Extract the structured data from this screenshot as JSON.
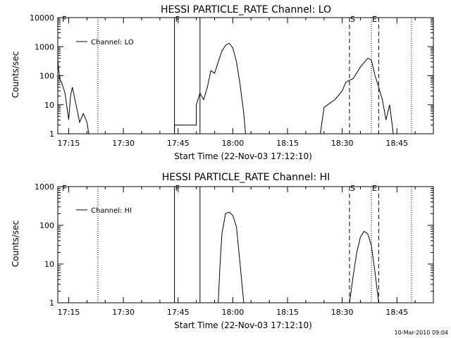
{
  "stamp": "10-Mar-2010 09:04",
  "colors": {
    "background": "#ffffff",
    "foreground": "#000000"
  },
  "chart_data": [
    {
      "type": "line",
      "title": "HESSI PARTICLE_RATE Channel: LO",
      "xlabel": "Start Time (22-Nov-03 17:12:10)",
      "ylabel": "Counts/sec",
      "yscale": "log",
      "ylim": [
        1,
        10000
      ],
      "xlim": [
        "17:12",
        "18:55"
      ],
      "xticks": [
        "17:15",
        "17:30",
        "17:45",
        "18:00",
        "18:15",
        "18:30",
        "18:45"
      ],
      "yticks": [
        "1",
        "10",
        "100",
        "1000",
        "10000"
      ],
      "legend": {
        "label": "Channel: LO",
        "position": "top-left"
      },
      "markers": [
        {
          "time": "17:13",
          "style": "none",
          "label": "F"
        },
        {
          "time": "17:23",
          "style": "dotted",
          "label": ""
        },
        {
          "time": "17:44",
          "style": "solid",
          "label": "F"
        },
        {
          "time": "17:51",
          "style": "solid",
          "label": ""
        },
        {
          "time": "18:32",
          "style": "dashed",
          "label": "S"
        },
        {
          "time": "18:38",
          "style": "dotted",
          "label": "E"
        },
        {
          "time": "18:40",
          "style": "dashed",
          "label": ""
        },
        {
          "time": "18:49",
          "style": "dotted",
          "label": ""
        }
      ],
      "series": [
        {
          "points": [
            [
              "17:12",
              350
            ],
            [
              "17:12.5",
              80
            ],
            [
              "17:13",
              60
            ],
            [
              "17:14",
              25
            ],
            [
              "17:15",
              3
            ],
            [
              "17:15.5",
              20
            ],
            [
              "17:16",
              40
            ],
            [
              "17:17",
              10
            ],
            [
              "17:18",
              2.5
            ],
            [
              "17:19",
              5
            ],
            [
              "17:20",
              2.5
            ],
            [
              "17:20.5",
              1
            ]
          ]
        },
        {
          "points": [
            [
              "17:44",
              1
            ],
            [
              "17:44",
              2
            ],
            [
              "17:50",
              2
            ],
            [
              "17:50",
              10
            ],
            [
              "17:51",
              25
            ],
            [
              "17:52",
              15
            ],
            [
              "17:53",
              40
            ],
            [
              "17:54",
              150
            ],
            [
              "17:55",
              120
            ],
            [
              "17:56",
              300
            ],
            [
              "17:57",
              700
            ],
            [
              "17:58",
              1100
            ],
            [
              "17:59",
              1300
            ],
            [
              "18:00",
              900
            ],
            [
              "18:01",
              300
            ],
            [
              "18:02",
              50
            ],
            [
              "18:03",
              5
            ],
            [
              "18:03.5",
              1
            ]
          ]
        },
        {
          "points": [
            [
              "18:24",
              1
            ],
            [
              "18:25",
              8
            ],
            [
              "18:26",
              10
            ],
            [
              "18:28",
              15
            ],
            [
              "18:30",
              30
            ],
            [
              "18:31",
              60
            ],
            [
              "18:33",
              80
            ],
            [
              "18:35",
              200
            ],
            [
              "18:37",
              400
            ],
            [
              "18:38",
              350
            ],
            [
              "18:39",
              100
            ],
            [
              "18:40",
              40
            ],
            [
              "18:41",
              15
            ],
            [
              "18:42",
              3
            ],
            [
              "18:43",
              10
            ],
            [
              "18:44",
              1
            ]
          ]
        }
      ]
    },
    {
      "type": "line",
      "title": "HESSI PARTICLE_RATE Channel: HI",
      "xlabel": "Start Time (22-Nov-03 17:12:10)",
      "ylabel": "Counts/sec",
      "yscale": "log",
      "ylim": [
        1,
        1000
      ],
      "xlim": [
        "17:12",
        "18:55"
      ],
      "xticks": [
        "17:15",
        "17:30",
        "17:45",
        "18:00",
        "18:15",
        "18:30",
        "18:45"
      ],
      "yticks": [
        "1",
        "10",
        "100",
        "1000"
      ],
      "legend": {
        "label": "Channel: HI",
        "position": "top-left"
      },
      "markers": [
        {
          "time": "17:13",
          "style": "none",
          "label": "F"
        },
        {
          "time": "17:23",
          "style": "dotted",
          "label": ""
        },
        {
          "time": "17:44",
          "style": "solid",
          "label": "F"
        },
        {
          "time": "17:51",
          "style": "solid",
          "label": ""
        },
        {
          "time": "18:32",
          "style": "dashed",
          "label": "S"
        },
        {
          "time": "18:38",
          "style": "dotted",
          "label": "E"
        },
        {
          "time": "18:40",
          "style": "dashed",
          "label": ""
        },
        {
          "time": "18:49",
          "style": "dotted",
          "label": ""
        }
      ],
      "series": [
        {
          "points": [
            [
              "17:56",
              1
            ],
            [
              "17:56.5",
              10
            ],
            [
              "17:57",
              60
            ],
            [
              "17:58",
              200
            ],
            [
              "17:59",
              220
            ],
            [
              "18:00",
              180
            ],
            [
              "18:01",
              90
            ],
            [
              "18:02",
              10
            ],
            [
              "18:03",
              1
            ]
          ]
        },
        {
          "points": [
            [
              "18:32",
              1
            ],
            [
              "18:33",
              5
            ],
            [
              "18:34",
              20
            ],
            [
              "18:35",
              50
            ],
            [
              "18:36",
              70
            ],
            [
              "18:37",
              60
            ],
            [
              "18:38",
              30
            ],
            [
              "18:39",
              6
            ],
            [
              "18:40",
              1
            ]
          ]
        }
      ]
    }
  ]
}
